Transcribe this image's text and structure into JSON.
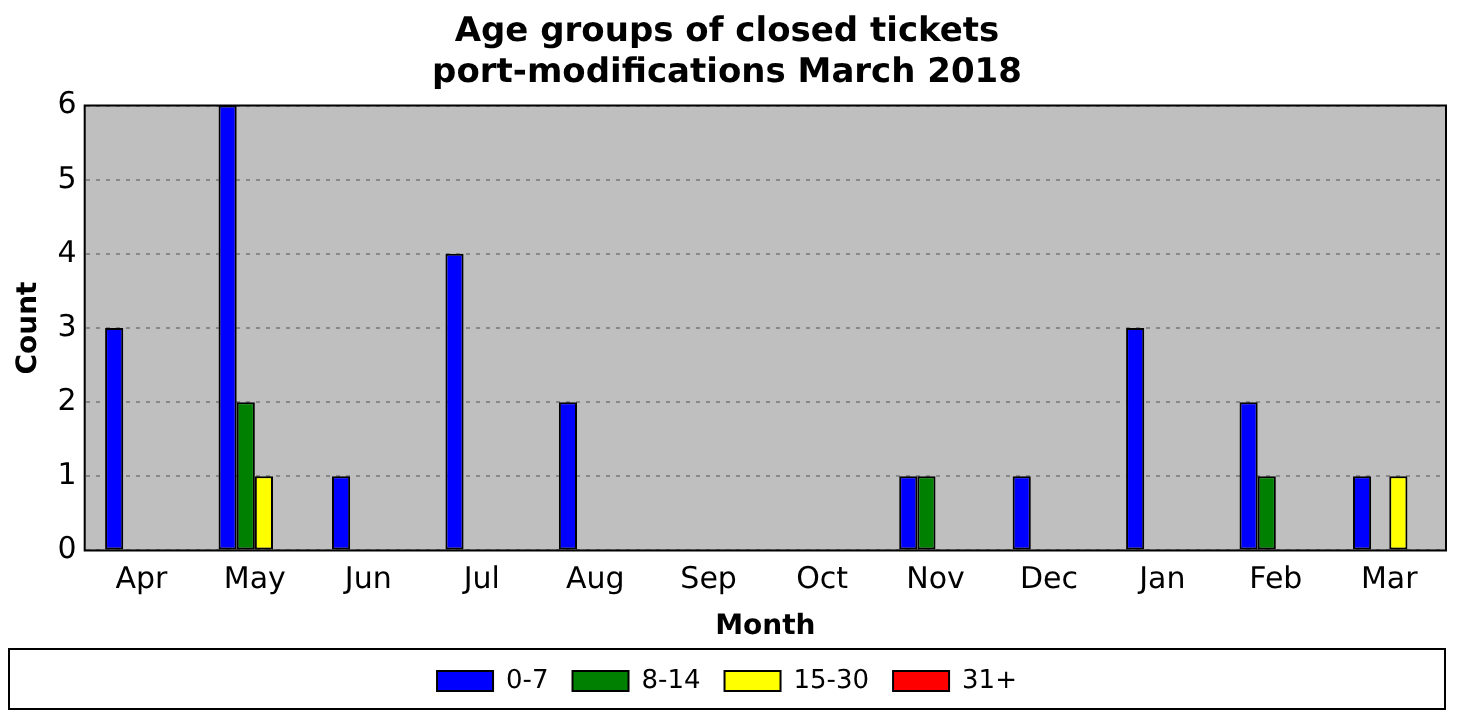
{
  "chart_data": {
    "type": "bar",
    "title": "Age groups of closed tickets\nport-modifications March 2018",
    "xlabel": "Month",
    "ylabel": "Count",
    "categories": [
      "Apr",
      "May",
      "Jun",
      "Jul",
      "Aug",
      "Sep",
      "Oct",
      "Nov",
      "Dec",
      "Jan",
      "Feb",
      "Mar"
    ],
    "series": [
      {
        "name": "0-7",
        "color": "#0000ff",
        "values": [
          3,
          6,
          1,
          4,
          2,
          0,
          0,
          1,
          1,
          3,
          2,
          1
        ]
      },
      {
        "name": "8-14",
        "color": "#008000",
        "values": [
          0,
          2,
          0,
          0,
          0,
          0,
          0,
          1,
          0,
          0,
          1,
          0
        ]
      },
      {
        "name": "15-30",
        "color": "#ffff00",
        "values": [
          0,
          1,
          0,
          0,
          0,
          0,
          0,
          0,
          0,
          0,
          0,
          1
        ]
      },
      {
        "name": "31+",
        "color": "#ff0000",
        "values": [
          0,
          0,
          0,
          0,
          0,
          0,
          0,
          0,
          0,
          0,
          0,
          0
        ]
      }
    ],
    "ylim": [
      0,
      6
    ],
    "yticks": [
      0,
      1,
      2,
      3,
      4,
      5,
      6
    ],
    "grid": "y",
    "legend": "bottom"
  }
}
